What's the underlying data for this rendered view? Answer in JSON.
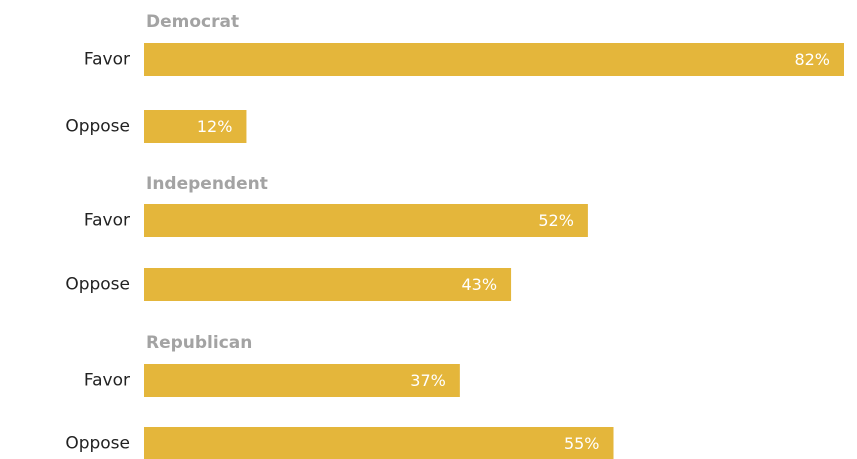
{
  "chart_data": {
    "type": "bar",
    "orientation": "horizontal",
    "bar_color": "#e4b63b",
    "value_suffix": "%",
    "xlim": [
      0,
      82
    ],
    "groups": [
      {
        "name": "Democrat",
        "bars": [
          {
            "label": "Favor",
            "value": 82
          },
          {
            "label": "Oppose",
            "value": 12
          }
        ]
      },
      {
        "name": "Independent",
        "bars": [
          {
            "label": "Favor",
            "value": 52
          },
          {
            "label": "Oppose",
            "value": 43
          }
        ]
      },
      {
        "name": "Republican",
        "bars": [
          {
            "label": "Favor",
            "value": 37
          },
          {
            "label": "Oppose",
            "value": 55
          }
        ]
      }
    ]
  }
}
